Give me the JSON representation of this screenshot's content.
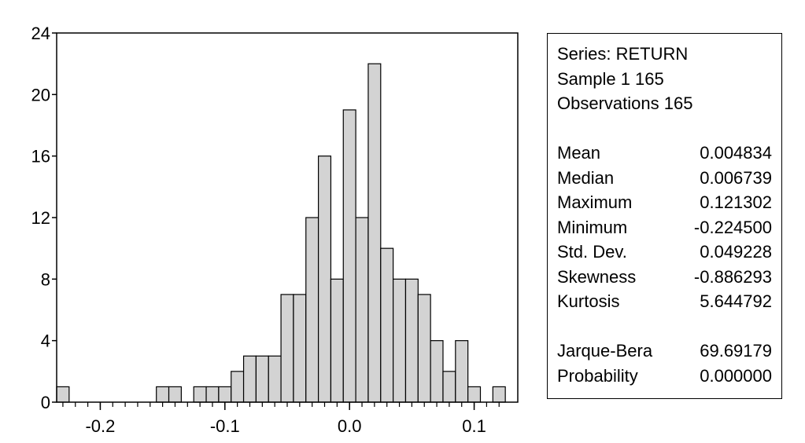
{
  "chart_data": {
    "type": "bar",
    "title": "",
    "xlabel": "",
    "ylabel": "",
    "bin_width": 0.01,
    "bins": [
      {
        "x": -0.23,
        "count": 1
      },
      {
        "x": -0.22,
        "count": 0
      },
      {
        "x": -0.21,
        "count": 0
      },
      {
        "x": -0.2,
        "count": 0
      },
      {
        "x": -0.19,
        "count": 0
      },
      {
        "x": -0.18,
        "count": 0
      },
      {
        "x": -0.17,
        "count": 0
      },
      {
        "x": -0.16,
        "count": 0
      },
      {
        "x": -0.15,
        "count": 1
      },
      {
        "x": -0.14,
        "count": 1
      },
      {
        "x": -0.13,
        "count": 0
      },
      {
        "x": -0.12,
        "count": 1
      },
      {
        "x": -0.11,
        "count": 1
      },
      {
        "x": -0.1,
        "count": 1
      },
      {
        "x": -0.09,
        "count": 2
      },
      {
        "x": -0.08,
        "count": 3
      },
      {
        "x": -0.07,
        "count": 3
      },
      {
        "x": -0.06,
        "count": 3
      },
      {
        "x": -0.05,
        "count": 7
      },
      {
        "x": -0.04,
        "count": 7
      },
      {
        "x": -0.03,
        "count": 12
      },
      {
        "x": -0.02,
        "count": 16
      },
      {
        "x": -0.01,
        "count": 8
      },
      {
        "x": 0.0,
        "count": 19
      },
      {
        "x": 0.01,
        "count": 12
      },
      {
        "x": 0.02,
        "count": 22
      },
      {
        "x": 0.03,
        "count": 10
      },
      {
        "x": 0.04,
        "count": 8
      },
      {
        "x": 0.05,
        "count": 8
      },
      {
        "x": 0.06,
        "count": 7
      },
      {
        "x": 0.07,
        "count": 4
      },
      {
        "x": 0.08,
        "count": 2
      },
      {
        "x": 0.09,
        "count": 4
      },
      {
        "x": 0.1,
        "count": 1
      },
      {
        "x": 0.11,
        "count": 0
      },
      {
        "x": 0.12,
        "count": 1
      }
    ],
    "xlim": [
      -0.235,
      0.135
    ],
    "ylim": [
      0,
      24
    ],
    "yticks": [
      0,
      4,
      8,
      12,
      16,
      20,
      24
    ],
    "ytick_labels": [
      "0",
      "4",
      "8",
      "12",
      "16",
      "20",
      "24"
    ],
    "xticks": [
      -0.2,
      -0.1,
      0.0,
      0.1
    ],
    "xtick_labels": [
      "-0.2",
      "-0.1",
      "0.0",
      "0.1"
    ],
    "grid": false,
    "bar_color": "#d3d3d3",
    "edge_color": "#000000"
  },
  "stats": {
    "series": "Series: RETURN",
    "sample": "Sample 1 165",
    "observations": "Observations 165",
    "rows": [
      {
        "label": "Mean",
        "value": "0.004834"
      },
      {
        "label": "Median",
        "value": "0.006739"
      },
      {
        "label": "Maximum",
        "value": "0.121302"
      },
      {
        "label": "Minimum",
        "value": "-0.224500"
      },
      {
        "label": "Std. Dev.",
        "value": "0.049228"
      },
      {
        "label": "Skewness",
        "value": "-0.886293"
      },
      {
        "label": "Kurtosis",
        "value": "5.644792"
      }
    ],
    "test_rows": [
      {
        "label": "Jarque-Bera",
        "value": "69.69179"
      },
      {
        "label": "Probability",
        "value": "0.000000"
      }
    ]
  }
}
